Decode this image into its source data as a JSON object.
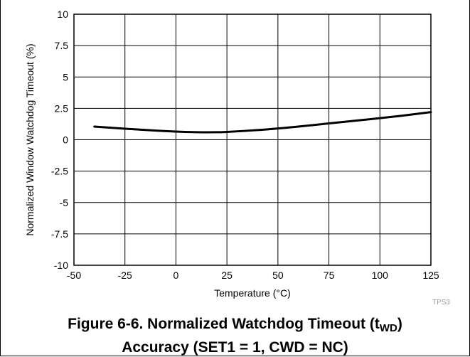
{
  "chart_data": {
    "type": "line",
    "xlabel": "Temperature (°C)",
    "ylabel": "Normalized Window Watchdog Timeout (%)",
    "xlim": [
      -50,
      125
    ],
    "ylim": [
      -10,
      10
    ],
    "x_ticks": [
      -50,
      -25,
      0,
      25,
      50,
      75,
      100,
      125
    ],
    "y_ticks": [
      10,
      7.5,
      5,
      2.5,
      0,
      -2.5,
      -5,
      -7.5,
      -10
    ],
    "x_tick_labels": [
      "-50",
      "-25",
      "0",
      "25",
      "50",
      "75",
      "100",
      "125"
    ],
    "y_tick_labels": [
      "10",
      "7.5",
      "5",
      "2.5",
      "0",
      "-2.5",
      "-5",
      "-7.5",
      "-10"
    ],
    "grid": true,
    "series": [
      {
        "x": [
          -40,
          -25,
          -10,
          0,
          10,
          20,
          25,
          40,
          50,
          60,
          75,
          90,
          100,
          110,
          125
        ],
        "y": [
          1.05,
          0.88,
          0.73,
          0.65,
          0.6,
          0.6,
          0.62,
          0.77,
          0.9,
          1.05,
          1.3,
          1.55,
          1.72,
          1.9,
          2.2
        ],
        "color": "#000000"
      }
    ]
  },
  "watermark": "TPS3",
  "caption": {
    "line1_pre": "Figure 6-6. Normalized Watchdog Timeout (t",
    "line1_sub": "WD",
    "line1_post": ")",
    "line2": "Accuracy (SET1 = 1, CWD = NC)"
  }
}
